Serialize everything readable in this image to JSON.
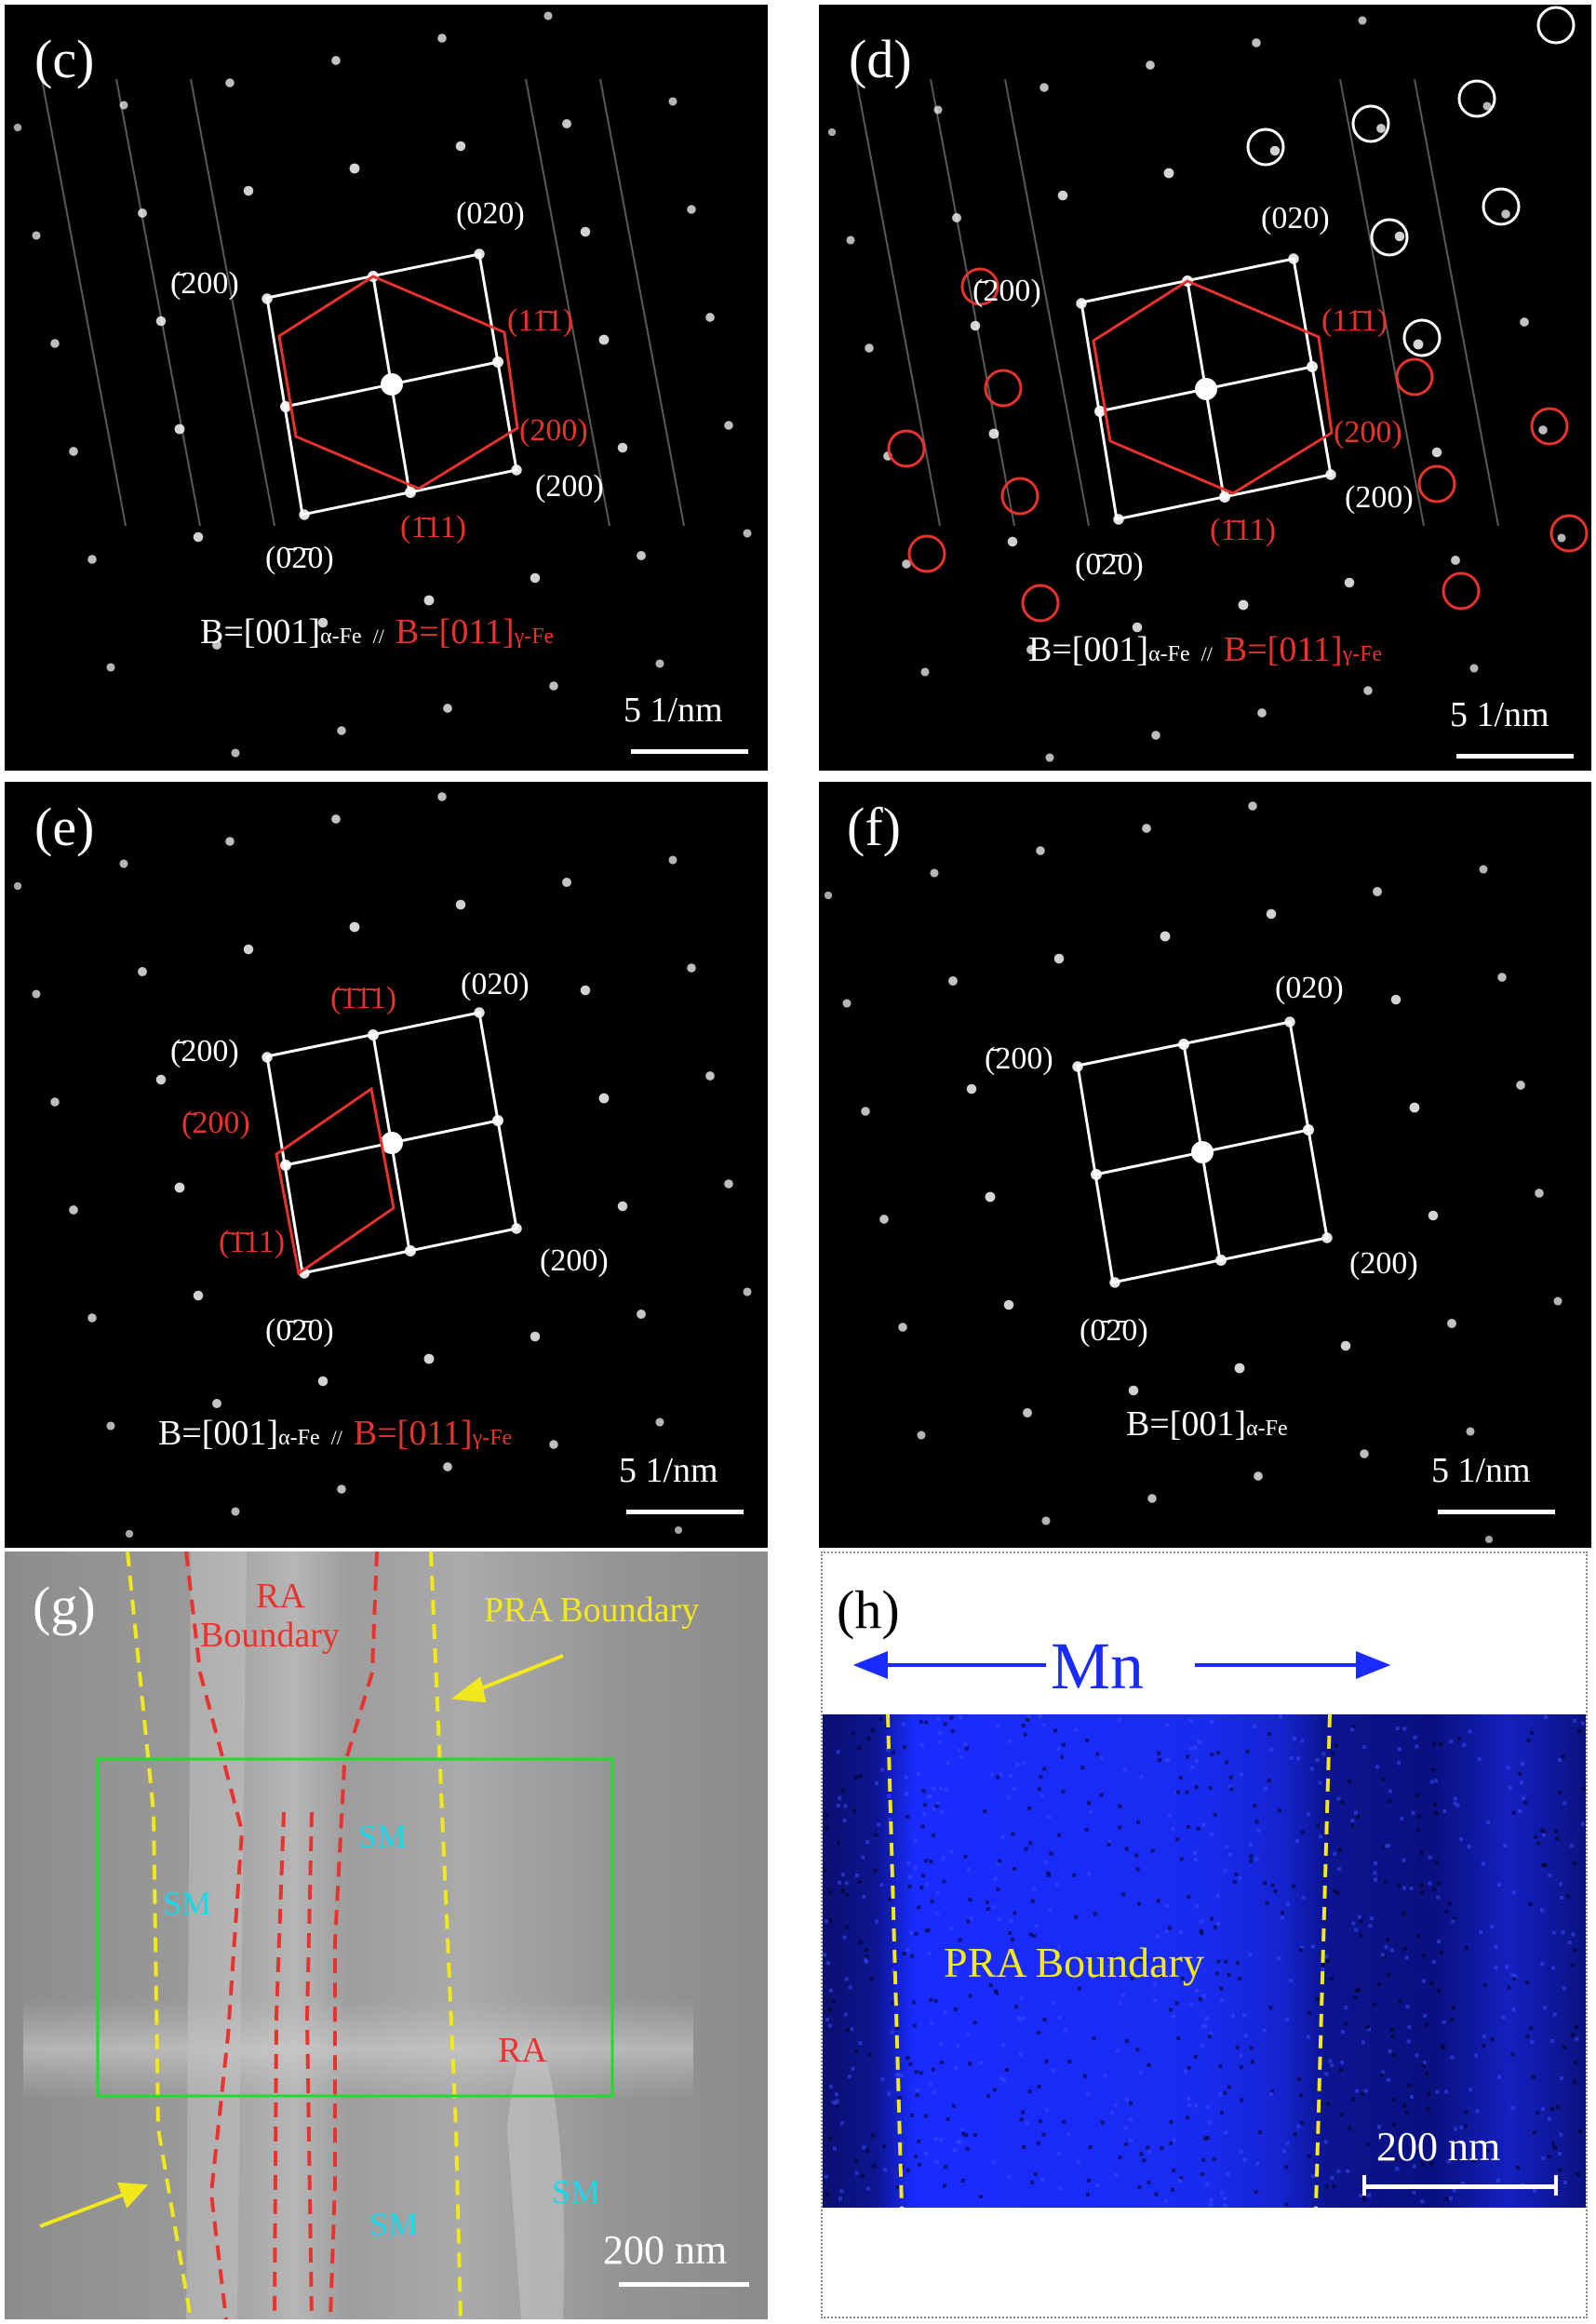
{
  "panels": {
    "c": {
      "label": "(c)",
      "idx": {
        "top": "(020)",
        "left": "(̄200)",
        "right": "(200)",
        "bottom": "(0̄2̄0)",
        "red1": "(11̄1)",
        "red2": "(200)",
        "red3": "(1̄11)"
      },
      "zone_a_pre": "B=[001]",
      "zone_a_sub": "α-Fe",
      "parallel": "//",
      "zone_g_pre": "B=[011]",
      "zone_g_sub": "γ-Fe",
      "scale": "5 1/nm"
    },
    "d": {
      "label": "(d)",
      "idx": {
        "top": "(020)",
        "left": "(̄200)",
        "right": "(200)",
        "bottom": "(0̄2̄0)",
        "red1": "(11̄1)",
        "red2": "(200)",
        "red3": "(1̄11)"
      },
      "zone_a_pre": "B=[001]",
      "zone_a_sub": "α-Fe",
      "parallel": "//",
      "zone_g_pre": "B=[011]",
      "zone_g_sub": "γ-Fe",
      "scale": "5 1/nm"
    },
    "e": {
      "label": "(e)",
      "idx": {
        "top": "(020)",
        "left": "(̄200)",
        "right": "(200)",
        "bottom": "(0̄2̄0)",
        "red1": "(̄1̄1̄1)",
        "red2": "(̄200)",
        "red3": "(̄1̄11)"
      },
      "zone_a_pre": "B=[001]",
      "zone_a_sub": "α-Fe",
      "parallel": "//",
      "zone_g_pre": "B=[011]",
      "zone_g_sub": "γ-Fe",
      "scale": "5 1/nm"
    },
    "f": {
      "label": "(f)",
      "idx": {
        "top": "(020)",
        "left": "(̄200)",
        "right": "(200)",
        "bottom": "(0̄2̄0)"
      },
      "zone_a_pre": "B=[001]",
      "zone_a_sub": "α-Fe",
      "scale": "5 1/nm"
    },
    "g": {
      "label": "(g)",
      "ra_boundary_1": "RA",
      "ra_boundary_2": "Boundary",
      "pra_boundary": "PRA Boundary",
      "sm": "SM",
      "ra": "RA",
      "scale": "200 nm"
    },
    "h": {
      "label": "(h)",
      "element": "Mn",
      "pra_boundary": "PRA Boundary",
      "scale": "200 nm"
    }
  },
  "colors": {
    "red": "#e8322e",
    "yellow": "#f2e81c",
    "cyan": "#18d8ea",
    "green": "#1fdc2e",
    "blue_map": "#1a2bff",
    "white": "#ffffff"
  }
}
